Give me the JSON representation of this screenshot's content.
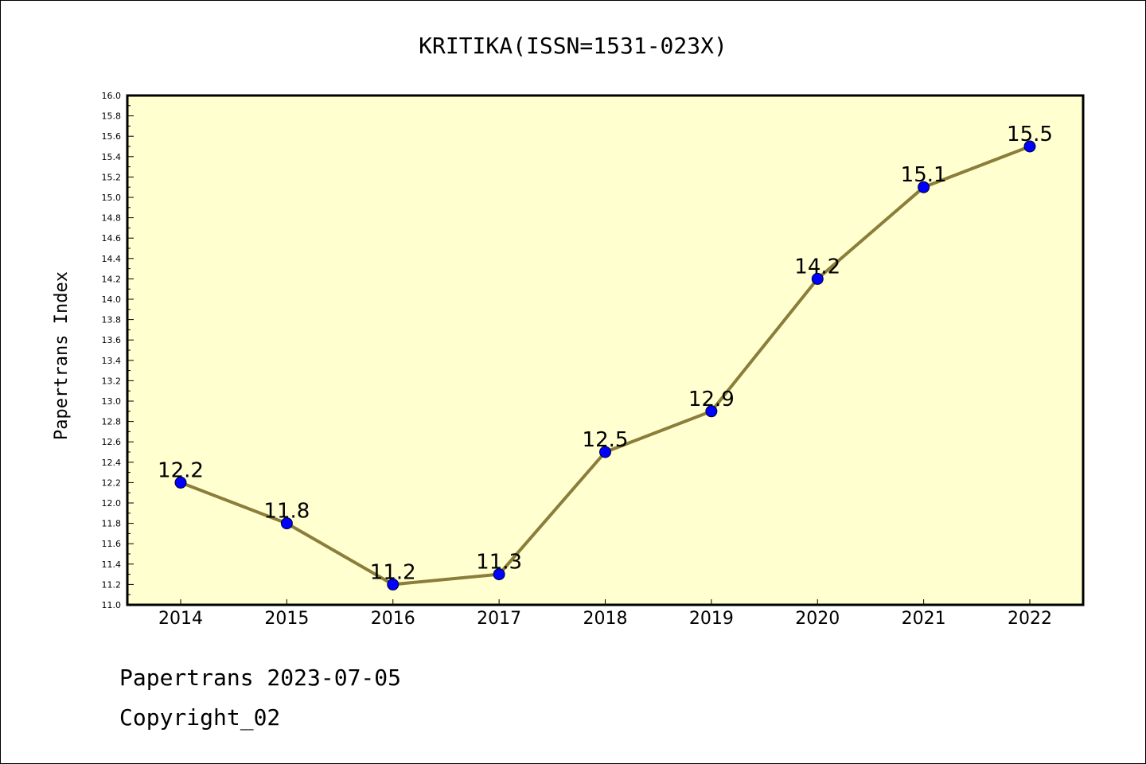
{
  "chart_data": {
    "type": "line",
    "title": "KRITIKA(ISSN=1531-023X)",
    "xlabel": "",
    "ylabel": "Papertrans Index",
    "categories": [
      "2014",
      "2015",
      "2016",
      "2017",
      "2018",
      "2019",
      "2020",
      "2021",
      "2022"
    ],
    "values": [
      12.2,
      11.8,
      11.2,
      11.3,
      12.5,
      12.9,
      14.2,
      15.1,
      15.5
    ],
    "data_labels": [
      "12.2",
      "11.8",
      "11.2",
      "11.3",
      "12.5",
      "12.9",
      "14.2",
      "15.1",
      "15.5"
    ],
    "ylim": [
      11.0,
      16.0
    ],
    "ytick_step": 0.2,
    "grid": false,
    "legend": "none",
    "colors": {
      "plot_background": "#ffffd0",
      "line": "#8b7d3a",
      "marker": "#0000ff"
    }
  },
  "footer": {
    "line1": "Papertrans 2023-07-05",
    "line2": "Copyright_02"
  }
}
